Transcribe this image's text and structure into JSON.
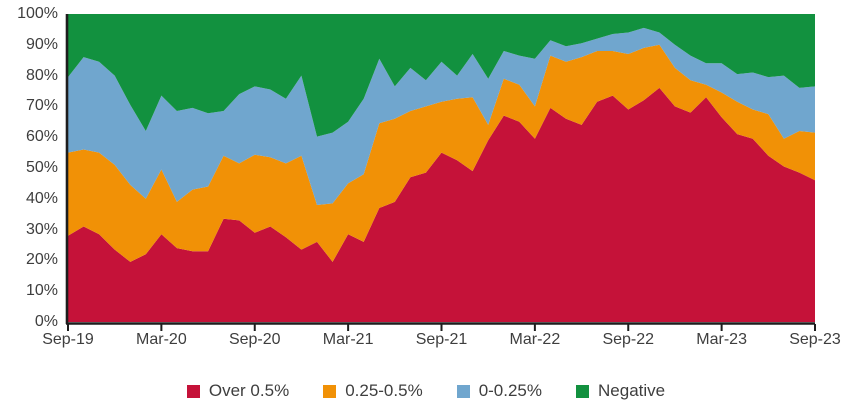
{
  "chart_data": {
    "type": "area",
    "stacked": true,
    "stack_mode": "percent",
    "grid": false,
    "legend_position": "bottom",
    "ylim": [
      0,
      100
    ],
    "y_ticks": [
      "0%",
      "10%",
      "20%",
      "30%",
      "40%",
      "50%",
      "60%",
      "70%",
      "80%",
      "90%",
      "100%"
    ],
    "x_tick_labels": [
      "Sep-19",
      "Mar-20",
      "Sep-20",
      "Mar-21",
      "Sep-21",
      "Mar-22",
      "Sep-22",
      "Mar-23",
      "Sep-23"
    ],
    "x_tick_every": 6,
    "axis_color": "#1d1d1d",
    "label_color": "#3E3E3E",
    "months": [
      "Sep-19",
      "Oct-19",
      "Nov-19",
      "Dec-19",
      "Jan-20",
      "Feb-20",
      "Mar-20",
      "Apr-20",
      "May-20",
      "Jun-20",
      "Jul-20",
      "Aug-20",
      "Sep-20",
      "Oct-20",
      "Nov-20",
      "Dec-20",
      "Jan-21",
      "Feb-21",
      "Mar-21",
      "Apr-21",
      "May-21",
      "Jun-21",
      "Jul-21",
      "Aug-21",
      "Sep-21",
      "Oct-21",
      "Nov-21",
      "Dec-21",
      "Jan-22",
      "Feb-22",
      "Mar-22",
      "Apr-22",
      "May-22",
      "Jun-22",
      "Jul-22",
      "Aug-22",
      "Sep-22",
      "Oct-22",
      "Nov-22",
      "Dec-22",
      "Jan-23",
      "Feb-23",
      "Mar-23",
      "Apr-23",
      "May-23",
      "Jun-23",
      "Jul-23",
      "Aug-23",
      "Sep-23"
    ],
    "series": [
      {
        "name": "Over 0.5%",
        "color": "#C51239",
        "values": [
          28,
          31,
          28.5,
          23.5,
          19.5,
          22,
          28.5,
          24,
          23,
          23,
          33.5,
          33,
          29,
          31,
          27.5,
          23.5,
          26,
          19.5,
          28.5,
          26,
          37,
          39,
          47,
          48.5,
          55,
          52.5,
          49,
          59,
          67,
          65,
          59.5,
          69.5,
          66,
          64,
          71.5,
          73.5,
          69,
          72,
          76,
          70,
          68,
          73,
          66.5,
          61,
          59.5,
          54,
          50.5,
          48.5,
          46
        ]
      },
      {
        "name": "0.25-0.5%",
        "color": "#F19106",
        "values": [
          27,
          25,
          26.5,
          27.5,
          25,
          18,
          21,
          15,
          20,
          21,
          20.5,
          18.5,
          25.3,
          22.5,
          24,
          30.5,
          12,
          19,
          16.5,
          22,
          27.5,
          27,
          21.5,
          21.5,
          16.5,
          20,
          24,
          5,
          12,
          12,
          10.5,
          17,
          18.5,
          22,
          16.5,
          14.5,
          18,
          17,
          14,
          12.5,
          10.5,
          4,
          8,
          10.5,
          9.5,
          13.5,
          9,
          13.5,
          15.5
        ]
      },
      {
        "name": "0-0.25%",
        "color": "#70A6CE",
        "values": [
          24.5,
          30,
          29.5,
          29,
          26,
          22,
          24,
          29.5,
          26.5,
          23.8,
          14.5,
          22.5,
          22.2,
          22,
          21,
          26,
          22.2,
          23,
          20,
          24.5,
          21,
          10.5,
          14,
          8.5,
          13,
          7.5,
          14,
          15,
          9,
          9.5,
          15.5,
          5,
          5,
          4.5,
          4,
          5.5,
          7,
          6.5,
          4,
          7.5,
          8,
          7,
          9.5,
          9,
          12,
          12,
          20.5,
          14,
          15
        ]
      },
      {
        "name": "Negative",
        "color": "#12913F",
        "values": [
          20.5,
          14,
          15.5,
          20,
          29.5,
          38,
          26.5,
          31.5,
          30.5,
          32.2,
          31.5,
          26,
          23.5,
          24.5,
          27.5,
          20,
          39.8,
          38.5,
          35,
          27.5,
          14.5,
          23.5,
          17.5,
          21.5,
          15.5,
          20,
          13,
          21,
          12,
          13.5,
          14.5,
          8.5,
          10.5,
          9.5,
          8,
          6.5,
          6,
          4.5,
          6,
          10,
          13.5,
          16,
          16,
          19.5,
          19,
          20.5,
          20,
          24,
          23.5
        ]
      }
    ]
  }
}
